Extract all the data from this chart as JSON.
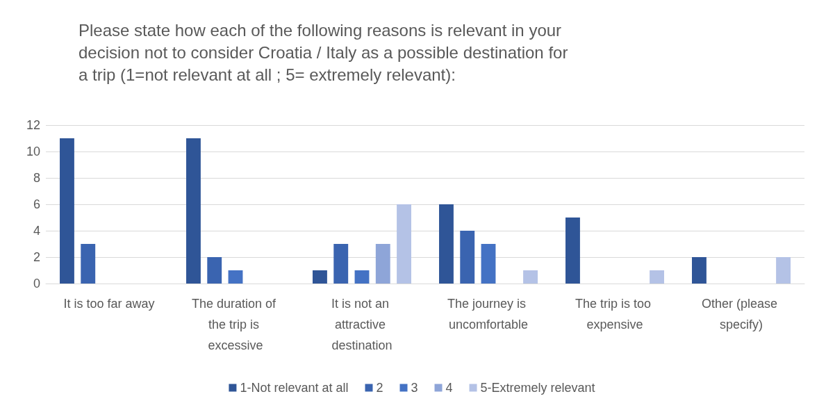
{
  "chart_data": {
    "type": "bar",
    "title": "Please state how each of the following reasons is relevant in your decision not to consider Croatia / Italy as a possible destination for a trip (1=not relevant at all ; 5= extremely relevant):",
    "categories": [
      "It is too far away",
      "The duration of the trip is excessive",
      "It is not an attractive destination",
      "The journey is uncomfortable",
      "The trip is too expensive",
      "Other (please specify)"
    ],
    "series": [
      {
        "name": "1-Not relevant at all",
        "color": "#2f5597",
        "values": [
          11,
          11,
          1,
          6,
          5,
          2
        ]
      },
      {
        "name": "2",
        "color": "#3a64b0",
        "values": [
          3,
          2,
          3,
          4,
          0,
          0
        ]
      },
      {
        "name": "3",
        "color": "#4472c4",
        "values": [
          0,
          1,
          1,
          3,
          0,
          0
        ]
      },
      {
        "name": "4",
        "color": "#8ea5d8",
        "values": [
          0,
          0,
          3,
          0,
          0,
          0
        ]
      },
      {
        "name": "5-Extremely relevant",
        "color": "#b4c2e6",
        "values": [
          0,
          0,
          6,
          1,
          1,
          2
        ]
      }
    ],
    "ylim": [
      0,
      12
    ],
    "yticks": [
      0,
      2,
      4,
      6,
      8,
      10,
      12
    ],
    "grid": "y",
    "legend": "bottom"
  }
}
